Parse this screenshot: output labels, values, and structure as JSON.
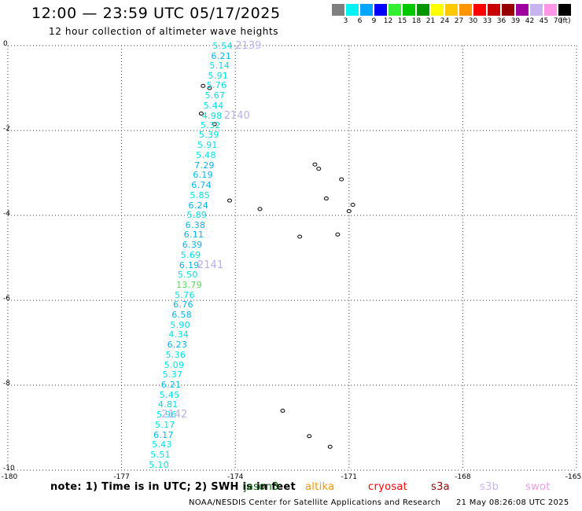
{
  "header": {
    "title": "12:00 — 23:59 UTC 05/17/2025",
    "subtitle": "12 hour collection of altimeter wave heights"
  },
  "colorbar": {
    "unit": "(ft)",
    "bins": [
      {
        "label": "3",
        "color": "#7f7f7f"
      },
      {
        "label": "6",
        "color": "#00f2f2"
      },
      {
        "label": "9",
        "color": "#00a6ff"
      },
      {
        "label": "12",
        "color": "#0000ff"
      },
      {
        "label": "15",
        "color": "#33ee33"
      },
      {
        "label": "18",
        "color": "#00c800"
      },
      {
        "label": "21",
        "color": "#009600"
      },
      {
        "label": "24",
        "color": "#ffff00"
      },
      {
        "label": "27",
        "color": "#ffc800"
      },
      {
        "label": "30",
        "color": "#ff9600"
      },
      {
        "label": "33",
        "color": "#ff0000"
      },
      {
        "label": "36",
        "color": "#c80000"
      },
      {
        "label": "39",
        "color": "#960000"
      },
      {
        "label": "42",
        "color": "#a000a0"
      },
      {
        "label": "45",
        "color": "#c8b4f0"
      },
      {
        "label": "70",
        "color": "#ff96e6"
      },
      {
        "label": "",
        "color": "#000000"
      }
    ]
  },
  "map": {
    "lon_range": [
      -180,
      -165
    ],
    "lat_range": [
      -10,
      0
    ],
    "x_ticks": [
      "-180",
      "-177",
      "-174",
      "-171",
      "-168",
      "-165"
    ],
    "y_ticks": [
      "0",
      "-2",
      "-4",
      "-6",
      "-8",
      "-10"
    ],
    "grid": "dotted"
  },
  "swh_points": [
    {
      "v": "5.54",
      "lon": -174.6,
      "lat": -0.01,
      "c": "#00e0e6"
    },
    {
      "v": "6.21",
      "lon": -174.64,
      "lat": -0.25,
      "c": "#00b6ee"
    },
    {
      "v": "5.14",
      "lon": -174.68,
      "lat": -0.48,
      "c": "#00e0e6"
    },
    {
      "v": "5.91",
      "lon": -174.72,
      "lat": -0.72,
      "c": "#00e0e6"
    },
    {
      "v": "5.76",
      "lon": -174.76,
      "lat": -0.95,
      "c": "#00e0e6"
    },
    {
      "v": "5.67",
      "lon": -174.8,
      "lat": -1.19,
      "c": "#00e0e6"
    },
    {
      "v": "5.44",
      "lon": -174.84,
      "lat": -1.42,
      "c": "#00e0e6"
    },
    {
      "v": "4.98",
      "lon": -174.88,
      "lat": -1.66,
      "c": "#00e0e6"
    },
    {
      "v": "5.32",
      "lon": -174.92,
      "lat": -1.89,
      "c": "#00e0e6"
    },
    {
      "v": "5.39",
      "lon": -174.96,
      "lat": -2.12,
      "c": "#00e0e6"
    },
    {
      "v": "5.91",
      "lon": -175.0,
      "lat": -2.36,
      "c": "#00e0e6"
    },
    {
      "v": "5.48",
      "lon": -175.04,
      "lat": -2.59,
      "c": "#00e0e6"
    },
    {
      "v": "7.29",
      "lon": -175.08,
      "lat": -2.83,
      "c": "#00b6ee"
    },
    {
      "v": "6.19",
      "lon": -175.12,
      "lat": -3.06,
      "c": "#00b6ee"
    },
    {
      "v": "6.74",
      "lon": -175.16,
      "lat": -3.3,
      "c": "#00b6ee"
    },
    {
      "v": "5.85",
      "lon": -175.2,
      "lat": -3.53,
      "c": "#00e0e6"
    },
    {
      "v": "6.24",
      "lon": -175.24,
      "lat": -3.77,
      "c": "#00b6ee"
    },
    {
      "v": "5.89",
      "lon": -175.28,
      "lat": -4.0,
      "c": "#00e0e6"
    },
    {
      "v": "6.38",
      "lon": -175.32,
      "lat": -4.24,
      "c": "#00b6ee"
    },
    {
      "v": "6.11",
      "lon": -175.36,
      "lat": -4.47,
      "c": "#00b6ee"
    },
    {
      "v": "6.39",
      "lon": -175.4,
      "lat": -4.71,
      "c": "#00b6ee"
    },
    {
      "v": "5.69",
      "lon": -175.44,
      "lat": -4.94,
      "c": "#00e0e6"
    },
    {
      "v": "6.19",
      "lon": -175.48,
      "lat": -5.18,
      "c": "#00b6ee"
    },
    {
      "v": "5.50",
      "lon": -175.52,
      "lat": -5.41,
      "c": "#00e0e6"
    },
    {
      "v": "13.79",
      "lon": -175.56,
      "lat": -5.65,
      "c": "#55dd55"
    },
    {
      "v": "5.76",
      "lon": -175.6,
      "lat": -5.88,
      "c": "#00e0e6"
    },
    {
      "v": "6.76",
      "lon": -175.64,
      "lat": -6.12,
      "c": "#00b6ee"
    },
    {
      "v": "6.58",
      "lon": -175.68,
      "lat": -6.35,
      "c": "#00b6ee"
    },
    {
      "v": "5.90",
      "lon": -175.72,
      "lat": -6.59,
      "c": "#00e0e6"
    },
    {
      "v": "4.34",
      "lon": -175.76,
      "lat": -6.82,
      "c": "#00e0e6"
    },
    {
      "v": "6.23",
      "lon": -175.8,
      "lat": -7.06,
      "c": "#00b6ee"
    },
    {
      "v": "5.36",
      "lon": -175.84,
      "lat": -7.29,
      "c": "#00e0e6"
    },
    {
      "v": "5.09",
      "lon": -175.88,
      "lat": -7.53,
      "c": "#00e0e6"
    },
    {
      "v": "5.37",
      "lon": -175.92,
      "lat": -7.76,
      "c": "#00e0e6"
    },
    {
      "v": "6.21",
      "lon": -175.96,
      "lat": -8.0,
      "c": "#00b6ee"
    },
    {
      "v": "5.45",
      "lon": -176.0,
      "lat": -8.24,
      "c": "#00e0e6"
    },
    {
      "v": "4.81",
      "lon": -176.04,
      "lat": -8.47,
      "c": "#00e0e6"
    },
    {
      "v": "5.96",
      "lon": -176.08,
      "lat": -8.71,
      "c": "#00e0e6"
    },
    {
      "v": "5.17",
      "lon": -176.12,
      "lat": -8.94,
      "c": "#00e0e6"
    },
    {
      "v": "6.17",
      "lon": -176.16,
      "lat": -9.18,
      "c": "#00b6ee"
    },
    {
      "v": "5.43",
      "lon": -176.2,
      "lat": -9.41,
      "c": "#00e0e6"
    },
    {
      "v": "5.51",
      "lon": -176.24,
      "lat": -9.65,
      "c": "#00e0e6"
    },
    {
      "v": "5.10",
      "lon": -176.28,
      "lat": -9.88,
      "c": "#00e0e6"
    }
  ],
  "pass_labels": [
    {
      "v": "2139",
      "lon": -174.0,
      "lat": -0.01
    },
    {
      "v": "2140",
      "lon": -174.3,
      "lat": -1.66
    },
    {
      "v": "2141",
      "lon": -175.0,
      "lat": -5.18
    },
    {
      "v": "2142",
      "lon": -175.95,
      "lat": -8.71
    }
  ],
  "islands": [
    {
      "lon": -174.85,
      "lat": -0.95
    },
    {
      "lon": -174.68,
      "lat": -1.0
    },
    {
      "lon": -174.9,
      "lat": -1.6
    },
    {
      "lon": -174.55,
      "lat": -1.85
    },
    {
      "lon": -174.15,
      "lat": -3.65
    },
    {
      "lon": -173.35,
      "lat": -3.85
    },
    {
      "lon": -171.9,
      "lat": -2.8
    },
    {
      "lon": -171.8,
      "lat": -2.9
    },
    {
      "lon": -171.2,
      "lat": -3.15
    },
    {
      "lon": -171.6,
      "lat": -3.6
    },
    {
      "lon": -170.9,
      "lat": -3.75
    },
    {
      "lon": -171.0,
      "lat": -3.9
    },
    {
      "lon": -172.3,
      "lat": -4.5
    },
    {
      "lon": -171.3,
      "lat": -4.45
    },
    {
      "lon": -172.75,
      "lat": -8.6
    },
    {
      "lon": -172.05,
      "lat": -9.2
    },
    {
      "lon": -171.5,
      "lat": -9.45
    }
  ],
  "footer": {
    "note": "note:  1) Time is in UTC; 2) SWH is in feet",
    "satellites": [
      {
        "name": "jason3",
        "color": "#006400"
      },
      {
        "name": "altika",
        "color": "#ff9600"
      },
      {
        "name": "cryosat",
        "color": "#ff0000"
      },
      {
        "name": "s3a",
        "color": "#960000"
      },
      {
        "name": "s3b",
        "color": "#c8b4f0"
      },
      {
        "name": "swot",
        "color": "#ff96e6"
      }
    ],
    "credit": "NOAA/NESDIS Center for Satellite Applications and Research",
    "timestamp": "21 May 08:26:08 UTC 2025"
  }
}
